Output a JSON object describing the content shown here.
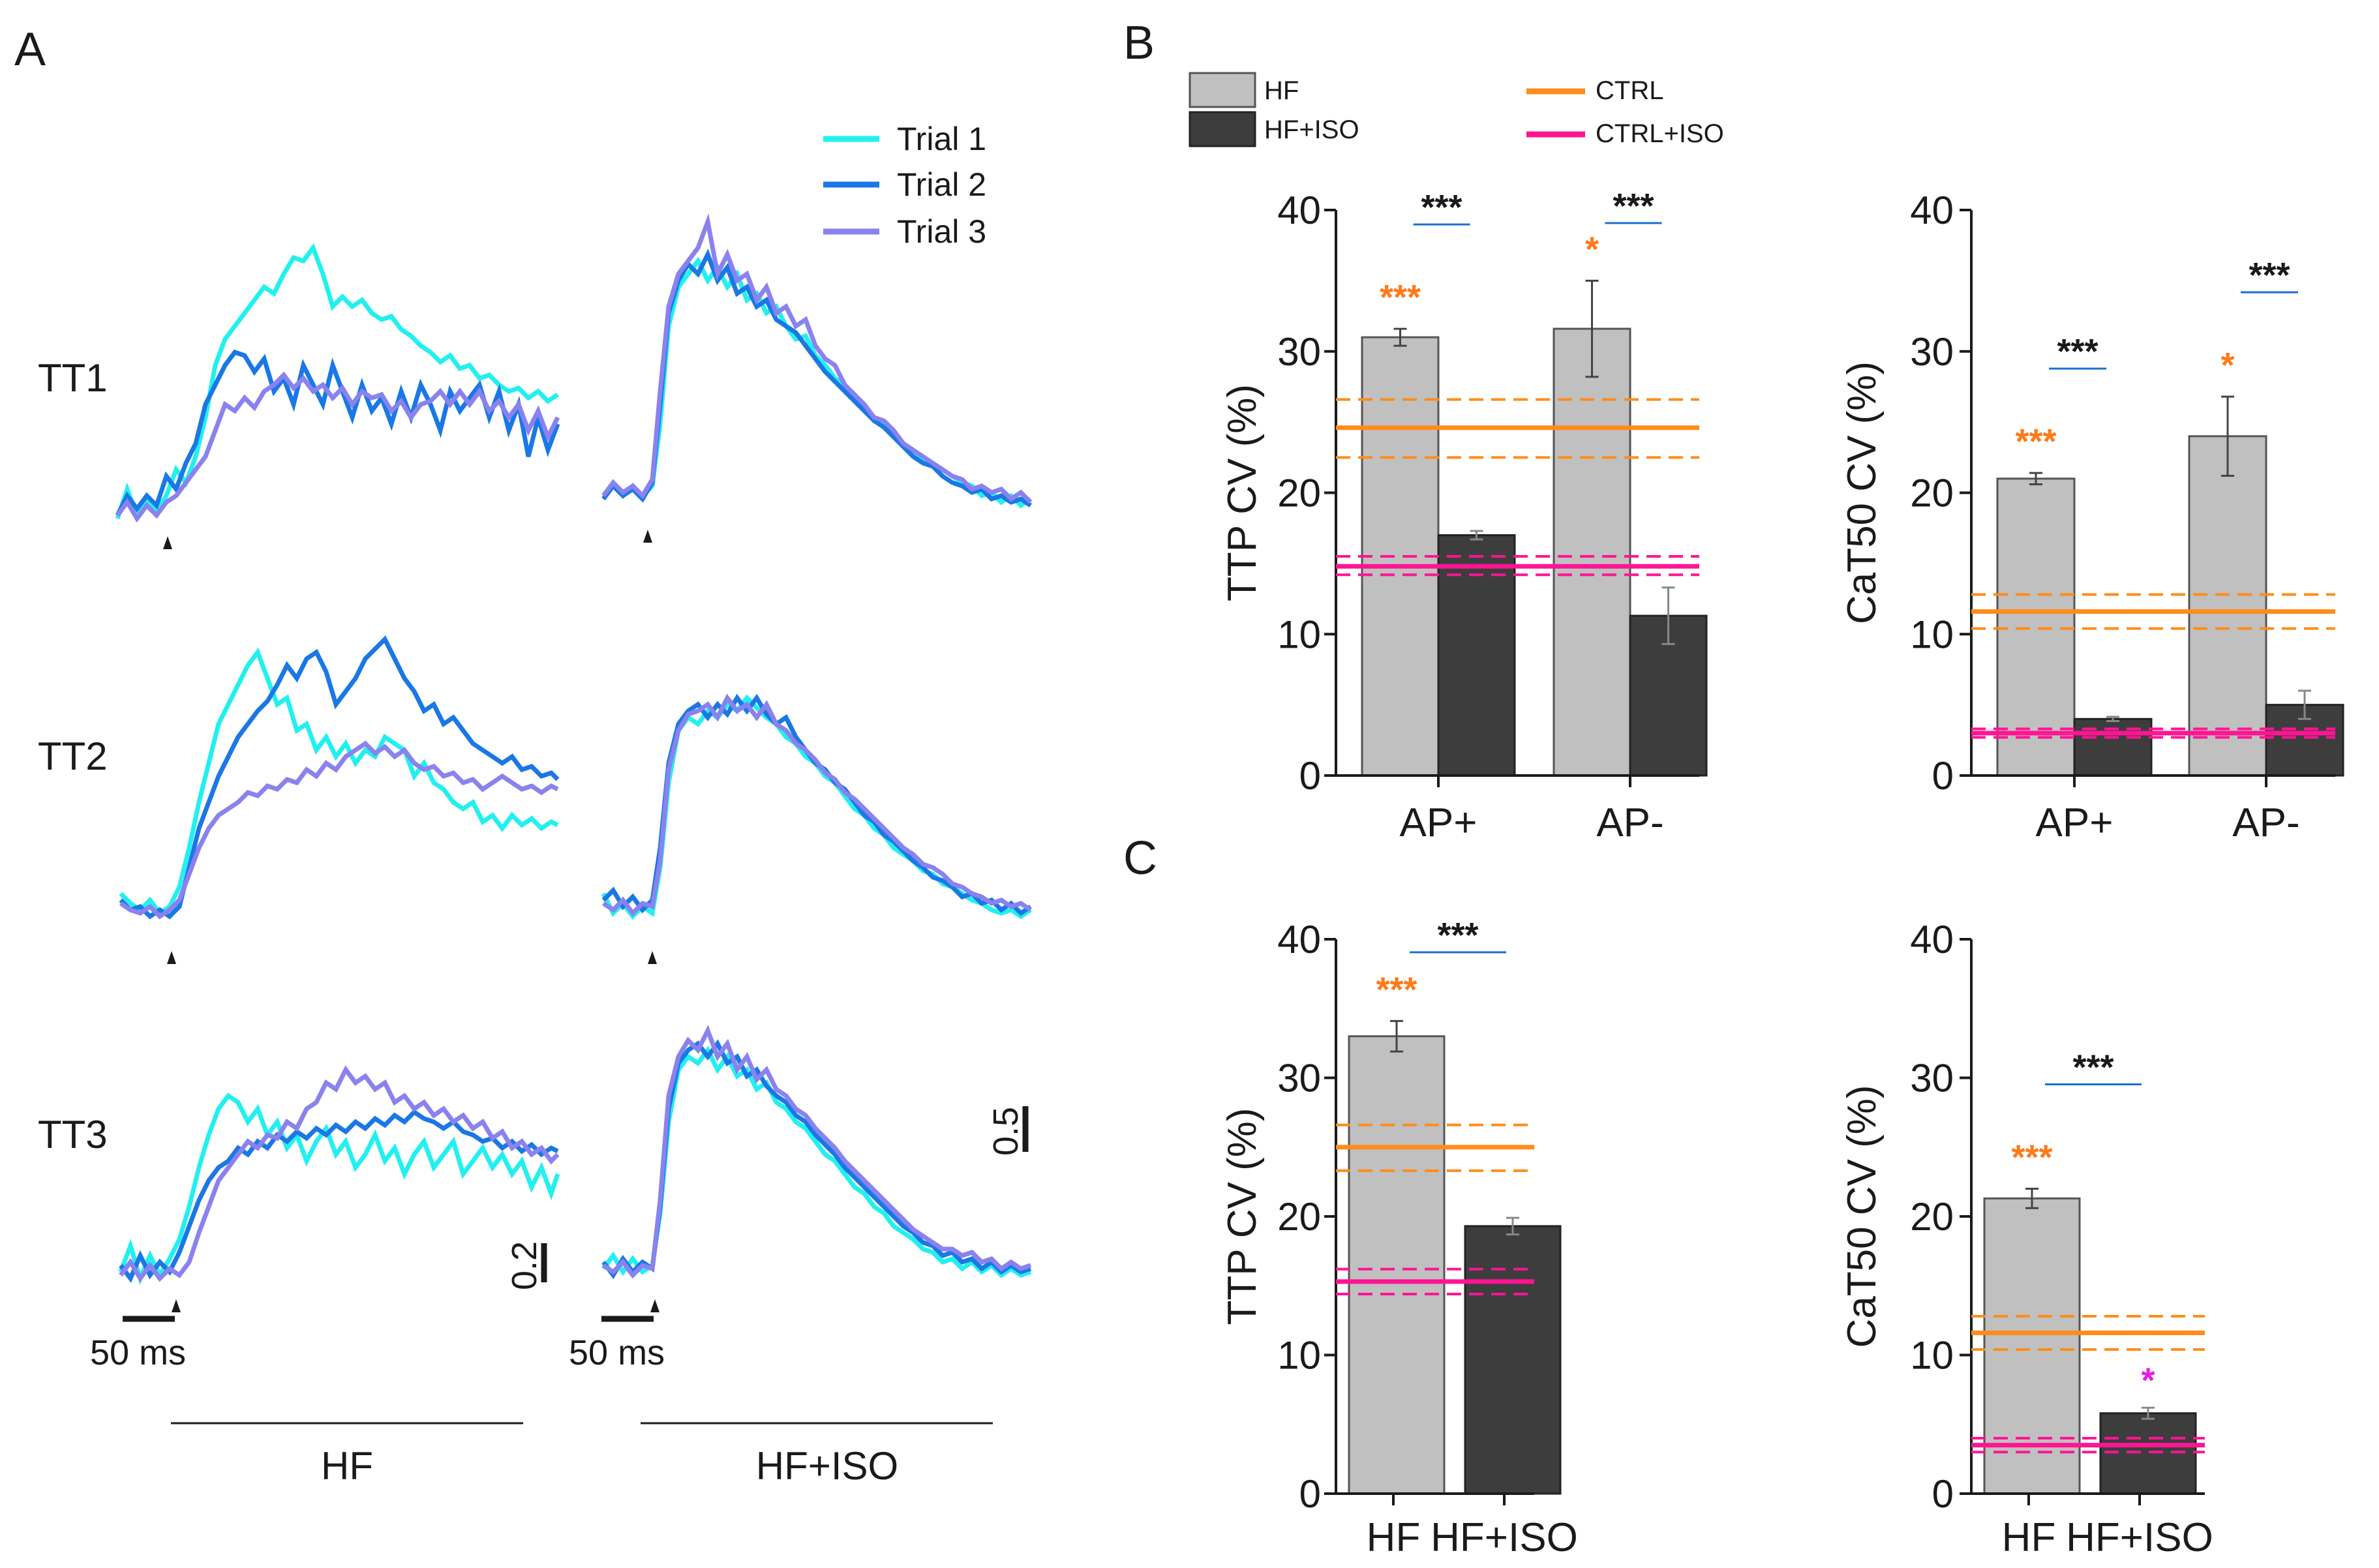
{
  "panel_letters": [
    "A",
    "B",
    "C"
  ],
  "panel_a": {
    "trial_legend": [
      {
        "label": "Trial 1",
        "color": "#22f0f0"
      },
      {
        "label": "Trial 2",
        "color": "#1a78e6"
      },
      {
        "label": "Trial 3",
        "color": "#8a82ee"
      }
    ],
    "rows": [
      "TT1",
      "TT2",
      "TT3"
    ],
    "groups": [
      "HF",
      "HF+ISO"
    ],
    "time_scale_label": "50 ms",
    "amp_scale_hf": "0.2",
    "amp_scale_iso": "0.5"
  },
  "bar_legend": [
    {
      "label": "HF",
      "color": "#c0c0c0"
    },
    {
      "label": "HF+ISO",
      "color": "#3d3d3d"
    }
  ],
  "line_legend": [
    {
      "label": "CTRL",
      "color": "#ff8c1a"
    },
    {
      "label": "CTRL+ISO",
      "color": "#ff1493"
    }
  ],
  "chart_data": [
    {
      "id": "B1",
      "type": "bar",
      "ylabel": "TTP CV (%)",
      "ylim": [
        0,
        40
      ],
      "yticks": [
        0,
        10,
        20,
        30,
        40
      ],
      "categories": [
        "AP+",
        "AP-"
      ],
      "series": [
        {
          "name": "HF",
          "values": [
            31.0,
            31.6
          ],
          "errors": [
            0.6,
            3.4
          ]
        },
        {
          "name": "HF+ISO",
          "values": [
            17.0,
            11.3
          ],
          "errors": [
            0.3,
            2.0
          ]
        }
      ],
      "reference_lines": [
        {
          "name": "CTRL",
          "value": 24.6,
          "band": [
            22.5,
            26.6
          ]
        },
        {
          "name": "CTRL+ISO",
          "value": 14.8,
          "band": [
            14.2,
            15.5
          ]
        }
      ],
      "orange_stars": [
        "***",
        "*"
      ],
      "pair_stars": [
        "***",
        "***"
      ]
    },
    {
      "id": "B2",
      "type": "bar",
      "ylabel": "CaT50 CV (%)",
      "ylim": [
        0,
        40
      ],
      "yticks": [
        0,
        10,
        20,
        30,
        40
      ],
      "categories": [
        "AP+",
        "AP-"
      ],
      "series": [
        {
          "name": "HF",
          "values": [
            21.0,
            24.0
          ],
          "errors": [
            0.4,
            2.8
          ]
        },
        {
          "name": "HF+ISO",
          "values": [
            4.0,
            5.0
          ],
          "errors": [
            0.15,
            1.0
          ]
        }
      ],
      "reference_lines": [
        {
          "name": "CTRL",
          "value": 11.6,
          "band": [
            10.4,
            12.8
          ]
        },
        {
          "name": "CTRL+ISO",
          "value": 3.0,
          "band": [
            2.7,
            3.3
          ]
        }
      ],
      "orange_stars": [
        "***",
        "*"
      ],
      "pair_stars": [
        "***",
        "***"
      ]
    },
    {
      "id": "C1",
      "type": "bar",
      "ylabel": "TTP CV (%)",
      "ylim": [
        0,
        40
      ],
      "yticks": [
        0,
        10,
        20,
        30,
        40
      ],
      "categories": [
        "HF",
        "HF+ISO"
      ],
      "values": [
        33.0,
        19.3
      ],
      "errors": [
        1.1,
        0.6
      ],
      "reference_lines": [
        {
          "name": "CTRL",
          "value": 25.0,
          "band": [
            23.3,
            26.6
          ]
        },
        {
          "name": "CTRL+ISO",
          "value": 15.3,
          "band": [
            14.4,
            16.2
          ]
        }
      ],
      "orange_stars": [
        "***"
      ],
      "pair_stars": [
        "***"
      ]
    },
    {
      "id": "C2",
      "type": "bar",
      "ylabel": "CaT50 CV (%)",
      "ylim": [
        0,
        40
      ],
      "yticks": [
        0,
        10,
        20,
        30,
        40
      ],
      "categories": [
        "HF",
        "HF+ISO"
      ],
      "values": [
        21.3,
        5.8
      ],
      "errors": [
        0.7,
        0.4
      ],
      "reference_lines": [
        {
          "name": "CTRL",
          "value": 11.6,
          "band": [
            10.4,
            12.8
          ]
        },
        {
          "name": "CTRL+ISO",
          "value": 3.5,
          "band": [
            3.0,
            4.0
          ]
        }
      ],
      "orange_stars": [
        "***"
      ],
      "magenta_star": "*",
      "pair_stars": [
        "***"
      ]
    }
  ]
}
